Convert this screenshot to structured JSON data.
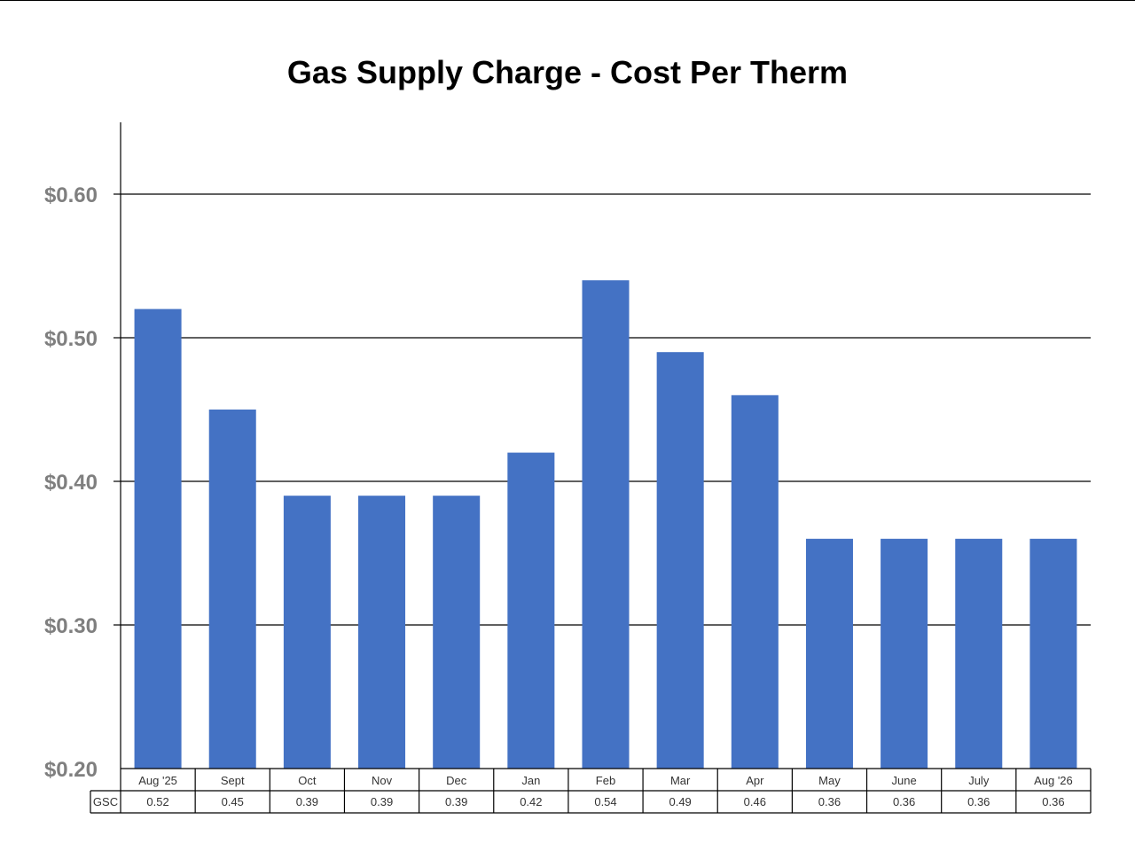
{
  "chart_data": {
    "type": "bar",
    "title": "Gas Supply Charge - Cost Per Therm",
    "xlabel": "",
    "ylabel": "",
    "ylim": [
      0.2,
      0.65
    ],
    "yticks": [
      {
        "value": 0.2,
        "label": "$0.20"
      },
      {
        "value": 0.3,
        "label": "$0.30"
      },
      {
        "value": 0.4,
        "label": "$0.40"
      },
      {
        "value": 0.5,
        "label": "$0.50"
      },
      {
        "value": 0.6,
        "label": "$0.60"
      }
    ],
    "grid": true,
    "legend": "none",
    "bar_color": "#4472C4",
    "categories": [
      "Aug '25",
      "Sept",
      "Oct",
      "Nov",
      "Dec",
      "Jan",
      "Feb",
      "Mar",
      "Apr",
      "May",
      "June",
      "July",
      "Aug '26"
    ],
    "series": [
      {
        "name": "GSC",
        "values": [
          0.52,
          0.45,
          0.39,
          0.39,
          0.39,
          0.42,
          0.54,
          0.49,
          0.46,
          0.36,
          0.36,
          0.36,
          0.36
        ],
        "value_labels": [
          "0.52",
          "0.45",
          "0.39",
          "0.39",
          "0.39",
          "0.42",
          "0.54",
          "0.49",
          "0.46",
          "0.36",
          "0.36",
          "0.36",
          "0.36"
        ]
      }
    ],
    "data_table": true
  }
}
